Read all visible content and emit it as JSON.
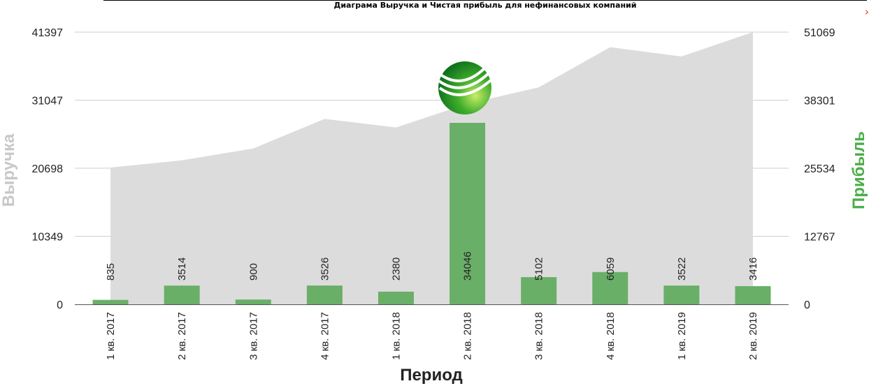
{
  "chart_data": {
    "type": "bar",
    "title": "Диаграма Выручка и Чистая прибыль для нефинансовых компаний",
    "xlabel": "Период",
    "ylabel_left": "Выручка",
    "ylabel_right": "Прибыль",
    "categories": [
      "1 кв. 2017",
      "2 кв. 2017",
      "3 кв. 2017",
      "4 кв. 2017",
      "1 кв. 2018",
      "2 кв. 2018",
      "3 кв. 2018",
      "4 кв. 2018",
      "1 кв. 2019",
      "2 кв. 2019"
    ],
    "y_left_ticks": [
      "0",
      "10349",
      "20698",
      "31047",
      "41397"
    ],
    "y_right_ticks": [
      "0",
      "12767",
      "25534",
      "38301",
      "51069"
    ],
    "ylim_left": [
      0,
      41397
    ],
    "ylim_right": [
      0,
      51069
    ],
    "grid": true,
    "series": [
      {
        "name": "Выручка",
        "type": "area",
        "axis": "left",
        "color": "#dcdcdc",
        "values": [
          20800,
          21900,
          23700,
          28200,
          26900,
          30500,
          33000,
          39100,
          37700,
          41397
        ]
      },
      {
        "name": "Прибыль",
        "type": "bar",
        "axis": "right",
        "color": "#6aaf68",
        "values": [
          835,
          3514,
          900,
          3526,
          2380,
          34046,
          5102,
          6059,
          3522,
          3416
        ],
        "data_labels": [
          "835",
          "3514",
          "900",
          "3526",
          "2380",
          "34046",
          "5102",
          "6059",
          "3522",
          "3416"
        ]
      }
    ]
  },
  "logo_icon": "sberbank-logo-icon",
  "close_icon": "chevron-right-icon",
  "close_glyph": "›"
}
